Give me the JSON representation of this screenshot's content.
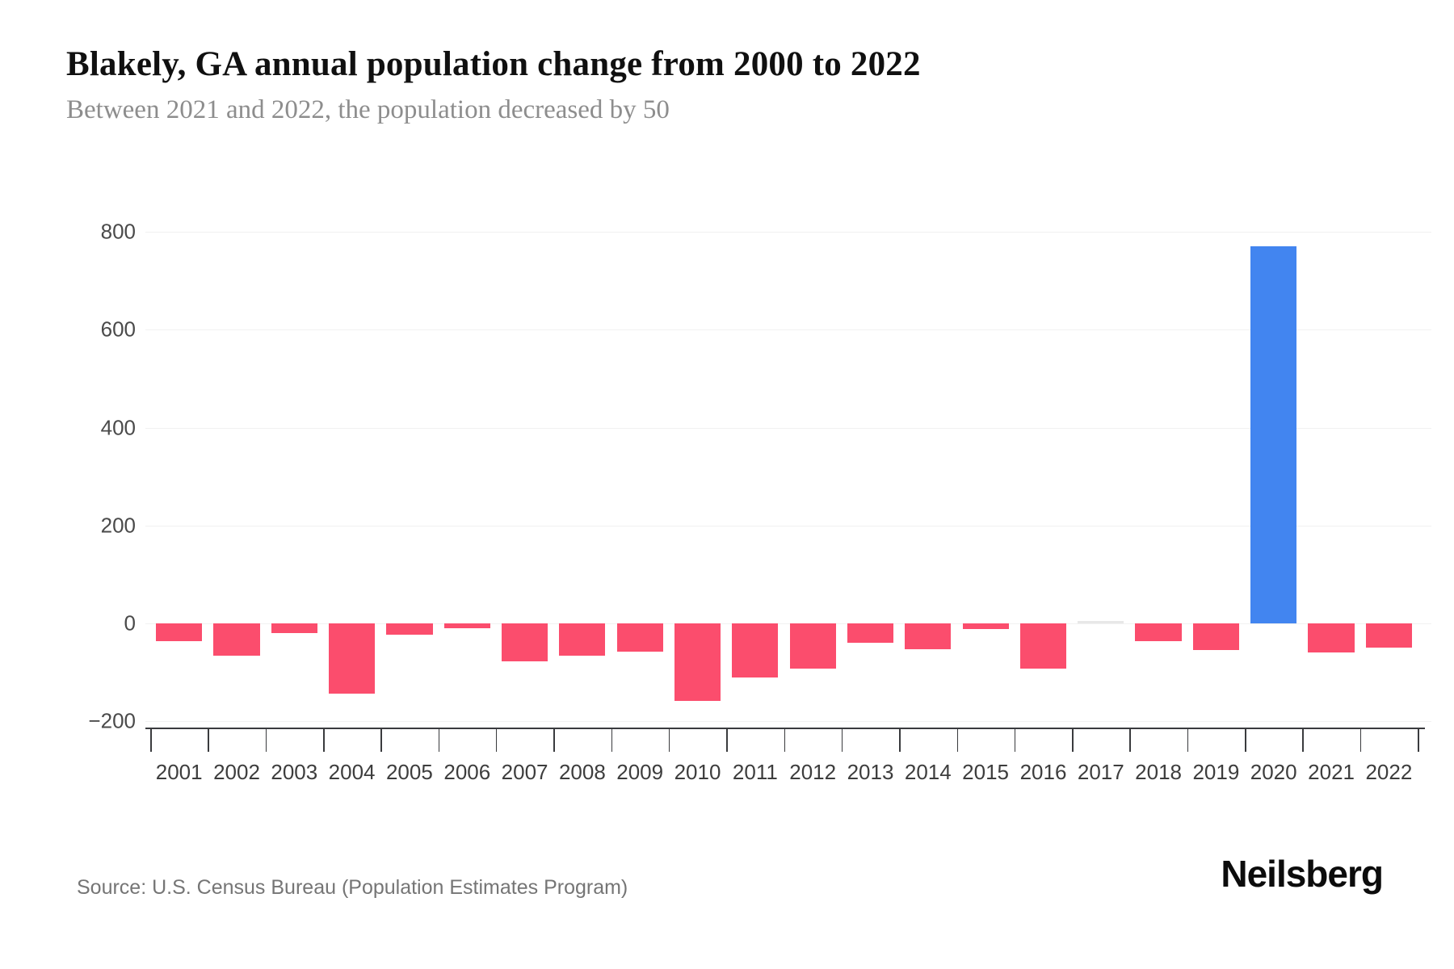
{
  "footer": {
    "source": "Source: U.S. Census Bureau (Population Estimates Program)",
    "brand": "Neilsberg"
  },
  "chart_data": {
    "type": "bar",
    "title": "Blakely, GA annual population change from 2000 to 2022",
    "subtitle": "Between 2021 and 2022, the population decreased by 50",
    "categories": [
      "2001",
      "2002",
      "2003",
      "2004",
      "2005",
      "2006",
      "2007",
      "2008",
      "2009",
      "2010",
      "2011",
      "2012",
      "2013",
      "2014",
      "2015",
      "2016",
      "2017",
      "2018",
      "2019",
      "2020",
      "2021",
      "2022"
    ],
    "values": [
      -36,
      -66,
      -20,
      -144,
      -23,
      -9,
      -78,
      -66,
      -58,
      -158,
      -111,
      -92,
      -39,
      -52,
      -11,
      -92,
      0,
      -36,
      -55,
      770,
      -59,
      -50
    ],
    "xlabel": "",
    "ylabel": "",
    "ylim": [
      -200,
      800
    ],
    "yticks": [
      800,
      600,
      400,
      200,
      0,
      -200
    ],
    "yticklabels": [
      "800",
      "600",
      "400",
      "200",
      "0",
      "−200"
    ],
    "grid": true,
    "legend": false,
    "colors": {
      "negative": "#FB4D6D",
      "positive": "#4285F0",
      "zero": "#E8E8E8",
      "gridline": "#F1F1F1",
      "axis": "#3A3B3E"
    }
  }
}
